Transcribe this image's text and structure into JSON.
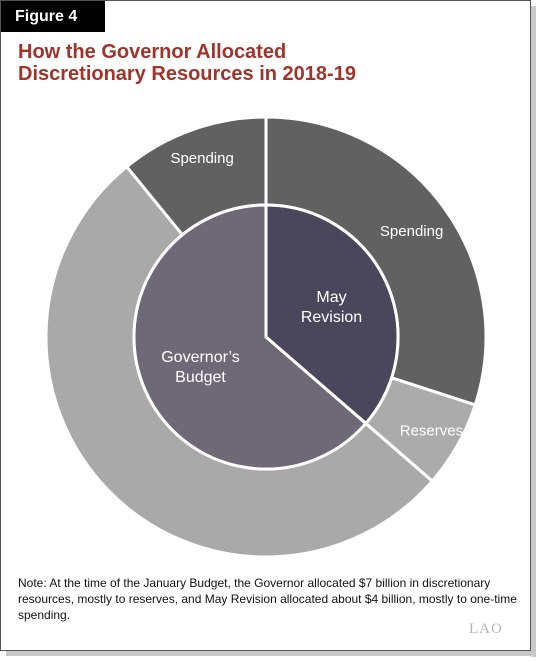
{
  "figure_label": "Figure 4",
  "title": {
    "line1": "How the Governor Allocated",
    "line2": "Discretionary Resources in 2018-19"
  },
  "chart_data": {
    "type": "pie",
    "title": "How the Governor Allocated Discretionary Resources in 2018-19",
    "inner_ring": {
      "slices": [
        {
          "label_lines": [
            "May",
            "Revision"
          ],
          "value": 4,
          "color": "#4a475c"
        },
        {
          "label_lines": [
            "Governor’s",
            "Budget"
          ],
          "value": 7,
          "color": "#6e6877"
        }
      ]
    },
    "outer_ring": {
      "slices": [
        {
          "label": "Spending",
          "value": 3.3,
          "color": "#616161"
        },
        {
          "label": "Reserves",
          "value": 0.7,
          "color": "#ababab"
        },
        {
          "label": "",
          "value": 5.8,
          "color": "#a9a9a9"
        },
        {
          "label": "Spending",
          "value": 1.2,
          "color": "#616161"
        }
      ]
    }
  },
  "note": "Note: At the time of the January Budget, the Governor allocated $7 billion in discretionary resources, mostly to reserves, and May Revision allocated about $4 billion, mostly to one-time spending.",
  "logo": "LAO"
}
